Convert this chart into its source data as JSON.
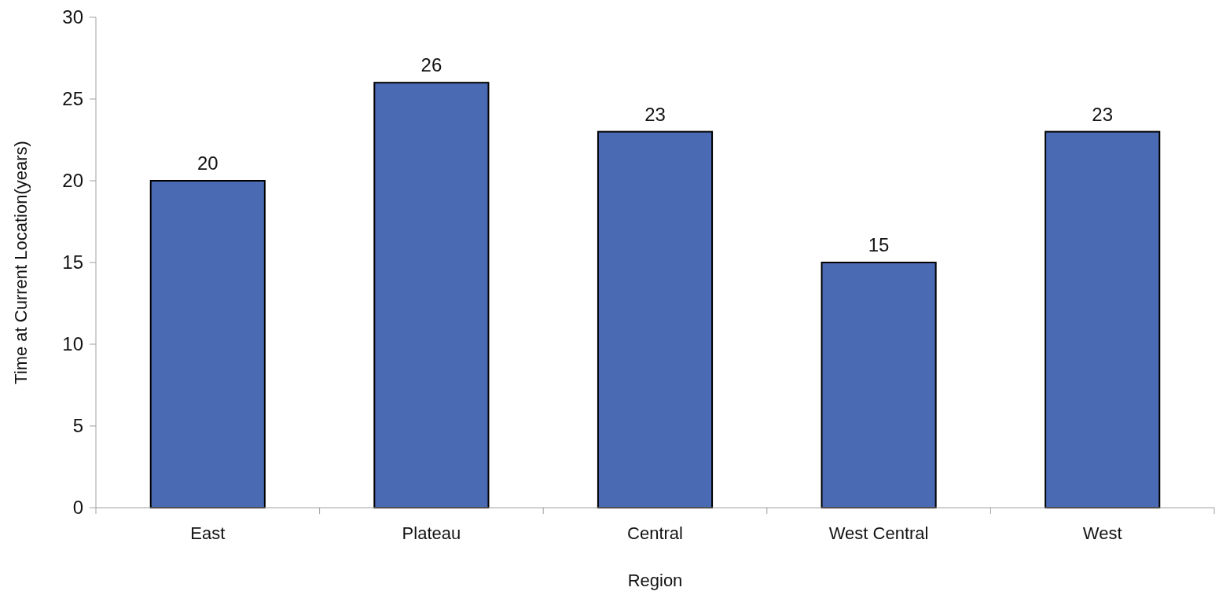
{
  "chart_data": {
    "type": "bar",
    "xlabel": "Region",
    "ylabel": "Time at Current Location(years)",
    "categories": [
      "East",
      "Plateau",
      "Central",
      "West Central",
      "West"
    ],
    "values": [
      20,
      26,
      23,
      15,
      23
    ],
    "color": "#4a6ab4",
    "ylim": [
      0,
      30
    ],
    "yticks": [
      0,
      5,
      10,
      15,
      20,
      25,
      30
    ],
    "grid": false,
    "data_labels": true
  }
}
